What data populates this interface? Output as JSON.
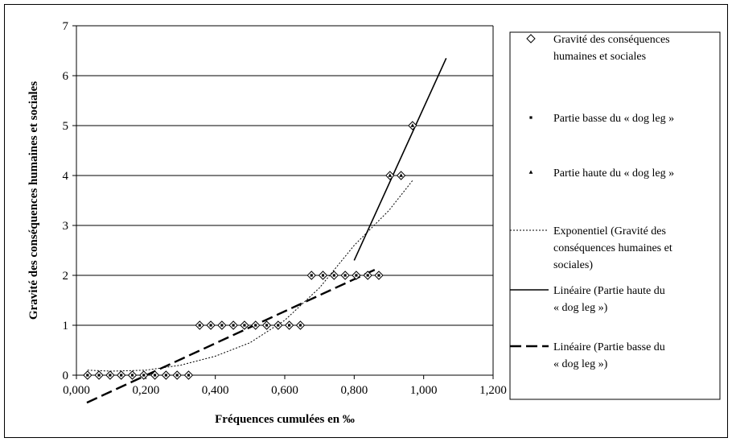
{
  "chart_data": {
    "type": "scatter",
    "title": "",
    "xlabel": "Fréquences cumulées en ‰",
    "ylabel": "Gravité des conséquences humaines et sociales",
    "xlim": [
      0,
      1.2
    ],
    "ylim": [
      0,
      7
    ],
    "x_ticks": [
      0,
      0.2,
      0.4,
      0.6,
      0.8,
      1.0,
      1.2
    ],
    "x_tick_labels": [
      "0,000",
      "0,200",
      "0,400",
      "0,600",
      "0,800",
      "1,000",
      "1,200"
    ],
    "y_ticks": [
      0,
      1,
      2,
      3,
      4,
      5,
      6,
      7
    ],
    "y_tick_labels": [
      "0",
      "1",
      "2",
      "3",
      "4",
      "5",
      "6",
      "7"
    ],
    "grid": "horizontal",
    "legend_position": "right",
    "series": [
      {
        "name": "Gravité des conséquences humaines et sociales",
        "kind": "points",
        "marker": "diamond",
        "points": [
          [
            0.032,
            0
          ],
          [
            0.065,
            0
          ],
          [
            0.097,
            0
          ],
          [
            0.129,
            0
          ],
          [
            0.161,
            0
          ],
          [
            0.194,
            0
          ],
          [
            0.226,
            0
          ],
          [
            0.258,
            0
          ],
          [
            0.29,
            0
          ],
          [
            0.323,
            0
          ],
          [
            0.355,
            1
          ],
          [
            0.387,
            1
          ],
          [
            0.419,
            1
          ],
          [
            0.452,
            1
          ],
          [
            0.484,
            1
          ],
          [
            0.516,
            1
          ],
          [
            0.548,
            1
          ],
          [
            0.581,
            1
          ],
          [
            0.613,
            1
          ],
          [
            0.645,
            1
          ],
          [
            0.677,
            2
          ],
          [
            0.71,
            2
          ],
          [
            0.742,
            2
          ],
          [
            0.774,
            2
          ],
          [
            0.806,
            2
          ],
          [
            0.839,
            2
          ],
          [
            0.871,
            2
          ],
          [
            0.903,
            4
          ],
          [
            0.935,
            4
          ],
          [
            0.968,
            5
          ]
        ]
      },
      {
        "name": "Partie basse du « dog leg »",
        "kind": "points",
        "marker": "square",
        "points": [
          [
            0.032,
            0
          ],
          [
            0.065,
            0
          ],
          [
            0.097,
            0
          ],
          [
            0.129,
            0
          ],
          [
            0.161,
            0
          ],
          [
            0.194,
            0
          ],
          [
            0.226,
            0
          ],
          [
            0.258,
            0
          ],
          [
            0.29,
            0
          ],
          [
            0.323,
            0
          ],
          [
            0.355,
            1
          ],
          [
            0.387,
            1
          ],
          [
            0.419,
            1
          ],
          [
            0.452,
            1
          ],
          [
            0.484,
            1
          ],
          [
            0.516,
            1
          ],
          [
            0.548,
            1
          ],
          [
            0.581,
            1
          ],
          [
            0.613,
            1
          ],
          [
            0.645,
            1
          ],
          [
            0.677,
            2
          ],
          [
            0.71,
            2
          ],
          [
            0.742,
            2
          ],
          [
            0.774,
            2
          ],
          [
            0.806,
            2
          ],
          [
            0.839,
            2
          ],
          [
            0.871,
            2
          ]
        ]
      },
      {
        "name": "Partie haute du « dog leg »",
        "kind": "points",
        "marker": "triangle",
        "points": [
          [
            0.903,
            4
          ],
          [
            0.935,
            4
          ],
          [
            0.968,
            5
          ]
        ]
      },
      {
        "name": "Exponentiel (Gravité des conséquences humaines et sociales)",
        "kind": "line",
        "dash": "dotted",
        "points": [
          [
            0.032,
            0.1
          ],
          [
            0.1,
            0.08
          ],
          [
            0.2,
            0.1
          ],
          [
            0.3,
            0.2
          ],
          [
            0.4,
            0.38
          ],
          [
            0.5,
            0.65
          ],
          [
            0.6,
            1.1
          ],
          [
            0.7,
            1.75
          ],
          [
            0.8,
            2.6
          ],
          [
            0.9,
            3.3
          ],
          [
            0.968,
            3.9
          ]
        ]
      },
      {
        "name": "Linéaire (Partie haute du « dog leg »)",
        "kind": "line",
        "dash": "solid",
        "points": [
          [
            0.8,
            2.3
          ],
          [
            1.065,
            6.35
          ]
        ]
      },
      {
        "name": "Linéaire (Partie basse du « dog leg »)",
        "kind": "line",
        "dash": "dashed",
        "points": [
          [
            0.03,
            -0.55
          ],
          [
            0.871,
            2.15
          ]
        ]
      }
    ]
  }
}
